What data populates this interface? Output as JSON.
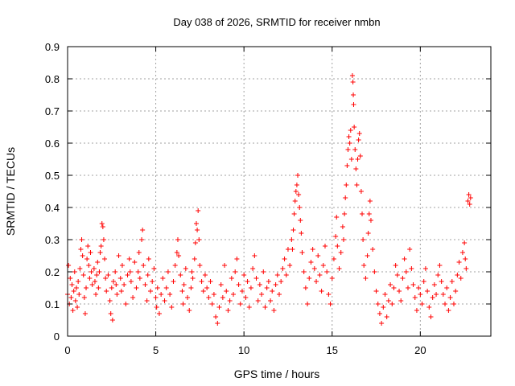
{
  "chart_data": {
    "type": "scatter",
    "title": "Day 038 of 2026, SRMTID for receiver nmbn",
    "xlabel": "GPS time / hours",
    "ylabel": "SRMTID / TECUs",
    "xlim": [
      0,
      24
    ],
    "ylim": [
      0,
      0.9
    ],
    "xticks": [
      0,
      5,
      10,
      15,
      20
    ],
    "xtick_labels": [
      "0",
      "5",
      "10",
      "15",
      "20"
    ],
    "yticks": [
      0,
      0.1,
      0.2,
      0.3,
      0.4,
      0.5,
      0.6,
      0.7,
      0.8,
      0.9
    ],
    "ytick_labels": [
      "0",
      "0.1",
      "0.2",
      "0.3",
      "0.4",
      "0.5",
      "0.6",
      "0.7",
      "0.8",
      "0.9"
    ],
    "grid": true,
    "marker": "+",
    "series": [
      {
        "name": "SRMTID",
        "color": "#ff0000",
        "points": [
          [
            0.0,
            0.13
          ],
          [
            0.05,
            0.22
          ],
          [
            0.1,
            0.1
          ],
          [
            0.15,
            0.18
          ],
          [
            0.2,
            0.12
          ],
          [
            0.25,
            0.16
          ],
          [
            0.3,
            0.08
          ],
          [
            0.35,
            0.14
          ],
          [
            0.4,
            0.2
          ],
          [
            0.45,
            0.11
          ],
          [
            0.5,
            0.15
          ],
          [
            0.55,
            0.09
          ],
          [
            0.6,
            0.17
          ],
          [
            0.65,
            0.13
          ],
          [
            0.7,
            0.21
          ],
          [
            0.75,
            0.27
          ],
          [
            0.8,
            0.3
          ],
          [
            0.85,
            0.25
          ],
          [
            0.9,
            0.19
          ],
          [
            0.95,
            0.12
          ],
          [
            1.0,
            0.07
          ],
          [
            1.05,
            0.15
          ],
          [
            1.1,
            0.24
          ],
          [
            1.15,
            0.28
          ],
          [
            1.2,
            0.22
          ],
          [
            1.25,
            0.18
          ],
          [
            1.3,
            0.26
          ],
          [
            1.35,
            0.2
          ],
          [
            1.4,
            0.16
          ],
          [
            1.5,
            0.21
          ],
          [
            1.55,
            0.17
          ],
          [
            1.6,
            0.13
          ],
          [
            1.65,
            0.19
          ],
          [
            1.7,
            0.23
          ],
          [
            1.75,
            0.15
          ],
          [
            1.8,
            0.2
          ],
          [
            1.85,
            0.26
          ],
          [
            1.9,
            0.28
          ],
          [
            1.95,
            0.35
          ],
          [
            2.0,
            0.34
          ],
          [
            2.05,
            0.3
          ],
          [
            2.1,
            0.24
          ],
          [
            2.15,
            0.18
          ],
          [
            2.2,
            0.14
          ],
          [
            2.3,
            0.19
          ],
          [
            2.4,
            0.11
          ],
          [
            2.45,
            0.07
          ],
          [
            2.5,
            0.15
          ],
          [
            2.55,
            0.05
          ],
          [
            2.6,
            0.17
          ],
          [
            2.7,
            0.2
          ],
          [
            2.75,
            0.16
          ],
          [
            2.8,
            0.13
          ],
          [
            2.9,
            0.25
          ],
          [
            3.0,
            0.18
          ],
          [
            3.05,
            0.14
          ],
          [
            3.1,
            0.22
          ],
          [
            3.2,
            0.16
          ],
          [
            3.3,
            0.1
          ],
          [
            3.4,
            0.19
          ],
          [
            3.5,
            0.24
          ],
          [
            3.55,
            0.2
          ],
          [
            3.6,
            0.17
          ],
          [
            3.7,
            0.12
          ],
          [
            3.8,
            0.23
          ],
          [
            3.9,
            0.15
          ],
          [
            4.0,
            0.2
          ],
          [
            4.05,
            0.26
          ],
          [
            4.1,
            0.18
          ],
          [
            4.2,
            0.3
          ],
          [
            4.25,
            0.33
          ],
          [
            4.3,
            0.22
          ],
          [
            4.4,
            0.16
          ],
          [
            4.5,
            0.11
          ],
          [
            4.55,
            0.19
          ],
          [
            4.6,
            0.24
          ],
          [
            4.7,
            0.14
          ],
          [
            4.8,
            0.17
          ],
          [
            4.9,
            0.21
          ],
          [
            5.0,
            0.12
          ],
          [
            5.05,
            0.09
          ],
          [
            5.1,
            0.15
          ],
          [
            5.2,
            0.07
          ],
          [
            5.3,
            0.13
          ],
          [
            5.4,
            0.18
          ],
          [
            5.5,
            0.11
          ],
          [
            5.6,
            0.15
          ],
          [
            5.7,
            0.2
          ],
          [
            5.8,
            0.13
          ],
          [
            5.9,
            0.09
          ],
          [
            6.0,
            0.17
          ],
          [
            6.1,
            0.22
          ],
          [
            6.2,
            0.26
          ],
          [
            6.25,
            0.3
          ],
          [
            6.3,
            0.25
          ],
          [
            6.4,
            0.19
          ],
          [
            6.5,
            0.14
          ],
          [
            6.55,
            0.1
          ],
          [
            6.6,
            0.16
          ],
          [
            6.7,
            0.21
          ],
          [
            6.8,
            0.12
          ],
          [
            6.9,
            0.08
          ],
          [
            7.0,
            0.15
          ],
          [
            7.05,
            0.2
          ],
          [
            7.1,
            0.18
          ],
          [
            7.2,
            0.24
          ],
          [
            7.25,
            0.29
          ],
          [
            7.3,
            0.35
          ],
          [
            7.35,
            0.33
          ],
          [
            7.4,
            0.39
          ],
          [
            7.45,
            0.3
          ],
          [
            7.5,
            0.22
          ],
          [
            7.6,
            0.17
          ],
          [
            7.7,
            0.14
          ],
          [
            7.8,
            0.19
          ],
          [
            7.9,
            0.15
          ],
          [
            8.0,
            0.12
          ],
          [
            8.1,
            0.17
          ],
          [
            8.2,
            0.1
          ],
          [
            8.3,
            0.13
          ],
          [
            8.4,
            0.06
          ],
          [
            8.5,
            0.04
          ],
          [
            8.6,
            0.09
          ],
          [
            8.7,
            0.16
          ],
          [
            8.8,
            0.12
          ],
          [
            8.9,
            0.22
          ],
          [
            9.0,
            0.14
          ],
          [
            9.1,
            0.08
          ],
          [
            9.2,
            0.11
          ],
          [
            9.3,
            0.18
          ],
          [
            9.4,
            0.13
          ],
          [
            9.5,
            0.2
          ],
          [
            9.6,
            0.24
          ],
          [
            9.7,
            0.16
          ],
          [
            9.8,
            0.1
          ],
          [
            9.9,
            0.14
          ],
          [
            10.0,
            0.19
          ],
          [
            10.1,
            0.12
          ],
          [
            10.2,
            0.17
          ],
          [
            10.3,
            0.09
          ],
          [
            10.4,
            0.15
          ],
          [
            10.5,
            0.21
          ],
          [
            10.6,
            0.25
          ],
          [
            10.7,
            0.18
          ],
          [
            10.8,
            0.11
          ],
          [
            10.9,
            0.16
          ],
          [
            11.0,
            0.13
          ],
          [
            11.1,
            0.2
          ],
          [
            11.2,
            0.09
          ],
          [
            11.3,
            0.15
          ],
          [
            11.4,
            0.17
          ],
          [
            11.5,
            0.11
          ],
          [
            11.6,
            0.14
          ],
          [
            11.7,
            0.08
          ],
          [
            11.8,
            0.16
          ],
          [
            11.9,
            0.19
          ],
          [
            12.0,
            0.13
          ],
          [
            12.1,
            0.17
          ],
          [
            12.2,
            0.21
          ],
          [
            12.3,
            0.24
          ],
          [
            12.4,
            0.19
          ],
          [
            12.5,
            0.27
          ],
          [
            12.6,
            0.22
          ],
          [
            12.7,
            0.3
          ],
          [
            12.75,
            0.27
          ],
          [
            12.8,
            0.33
          ],
          [
            12.85,
            0.38
          ],
          [
            12.9,
            0.42
          ],
          [
            12.95,
            0.45
          ],
          [
            13.0,
            0.47
          ],
          [
            13.05,
            0.5
          ],
          [
            13.1,
            0.44
          ],
          [
            13.15,
            0.4
          ],
          [
            13.2,
            0.36
          ],
          [
            13.25,
            0.32
          ],
          [
            13.3,
            0.26
          ],
          [
            13.4,
            0.2
          ],
          [
            13.5,
            0.15
          ],
          [
            13.6,
            0.1
          ],
          [
            13.7,
            0.18
          ],
          [
            13.8,
            0.23
          ],
          [
            13.9,
            0.27
          ],
          [
            14.0,
            0.21
          ],
          [
            14.1,
            0.17
          ],
          [
            14.2,
            0.25
          ],
          [
            14.3,
            0.19
          ],
          [
            14.4,
            0.14
          ],
          [
            14.5,
            0.22
          ],
          [
            14.6,
            0.28
          ],
          [
            14.7,
            0.2
          ],
          [
            14.8,
            0.13
          ],
          [
            14.9,
            0.1
          ],
          [
            15.0,
            0.18
          ],
          [
            15.1,
            0.24
          ],
          [
            15.2,
            0.31
          ],
          [
            15.25,
            0.37
          ],
          [
            15.3,
            0.28
          ],
          [
            15.4,
            0.21
          ],
          [
            15.5,
            0.26
          ],
          [
            15.6,
            0.34
          ],
          [
            15.65,
            0.3
          ],
          [
            15.7,
            0.38
          ],
          [
            15.75,
            0.43
          ],
          [
            15.8,
            0.47
          ],
          [
            15.85,
            0.53
          ],
          [
            15.9,
            0.58
          ],
          [
            15.95,
            0.62
          ],
          [
            16.0,
            0.6
          ],
          [
            16.05,
            0.64
          ],
          [
            16.1,
            0.55
          ],
          [
            16.15,
            0.81
          ],
          [
            16.18,
            0.79
          ],
          [
            16.2,
            0.75
          ],
          [
            16.22,
            0.72
          ],
          [
            16.25,
            0.65
          ],
          [
            16.3,
            0.58
          ],
          [
            16.35,
            0.52
          ],
          [
            16.4,
            0.47
          ],
          [
            16.45,
            0.55
          ],
          [
            16.5,
            0.61
          ],
          [
            16.55,
            0.63
          ],
          [
            16.6,
            0.56
          ],
          [
            16.65,
            0.45
          ],
          [
            16.7,
            0.38
          ],
          [
            16.75,
            0.3
          ],
          [
            16.8,
            0.22
          ],
          [
            16.9,
            0.18
          ],
          [
            17.0,
            0.25
          ],
          [
            17.05,
            0.32
          ],
          [
            17.1,
            0.38
          ],
          [
            17.15,
            0.42
          ],
          [
            17.2,
            0.36
          ],
          [
            17.3,
            0.27
          ],
          [
            17.4,
            0.2
          ],
          [
            17.5,
            0.14
          ],
          [
            17.6,
            0.1
          ],
          [
            17.7,
            0.07
          ],
          [
            17.8,
            0.04
          ],
          [
            17.9,
            0.09
          ],
          [
            18.0,
            0.13
          ],
          [
            18.1,
            0.06
          ],
          [
            18.2,
            0.11
          ],
          [
            18.3,
            0.16
          ],
          [
            18.4,
            0.1
          ],
          [
            18.5,
            0.15
          ],
          [
            18.6,
            0.22
          ],
          [
            18.7,
            0.19
          ],
          [
            18.8,
            0.14
          ],
          [
            18.9,
            0.11
          ],
          [
            19.0,
            0.18
          ],
          [
            19.1,
            0.24
          ],
          [
            19.2,
            0.2
          ],
          [
            19.3,
            0.15
          ],
          [
            19.4,
            0.27
          ],
          [
            19.5,
            0.21
          ],
          [
            19.6,
            0.16
          ],
          [
            19.7,
            0.12
          ],
          [
            19.8,
            0.08
          ],
          [
            19.9,
            0.15
          ],
          [
            20.0,
            0.13
          ],
          [
            20.1,
            0.1
          ],
          [
            20.2,
            0.17
          ],
          [
            20.3,
            0.21
          ],
          [
            20.4,
            0.14
          ],
          [
            20.5,
            0.09
          ],
          [
            20.6,
            0.06
          ],
          [
            20.7,
            0.12
          ],
          [
            20.8,
            0.16
          ],
          [
            20.9,
            0.13
          ],
          [
            21.0,
            0.19
          ],
          [
            21.1,
            0.22
          ],
          [
            21.2,
            0.17
          ],
          [
            21.3,
            0.13
          ],
          [
            21.4,
            0.1
          ],
          [
            21.5,
            0.15
          ],
          [
            21.6,
            0.08
          ],
          [
            21.7,
            0.12
          ],
          [
            21.8,
            0.17
          ],
          [
            21.9,
            0.1
          ],
          [
            22.0,
            0.14
          ],
          [
            22.1,
            0.19
          ],
          [
            22.2,
            0.23
          ],
          [
            22.3,
            0.18
          ],
          [
            22.4,
            0.26
          ],
          [
            22.5,
            0.29
          ],
          [
            22.55,
            0.24
          ],
          [
            22.6,
            0.21
          ],
          [
            22.7,
            0.42
          ],
          [
            22.75,
            0.44
          ],
          [
            22.8,
            0.41
          ],
          [
            22.85,
            0.43
          ]
        ]
      }
    ]
  }
}
